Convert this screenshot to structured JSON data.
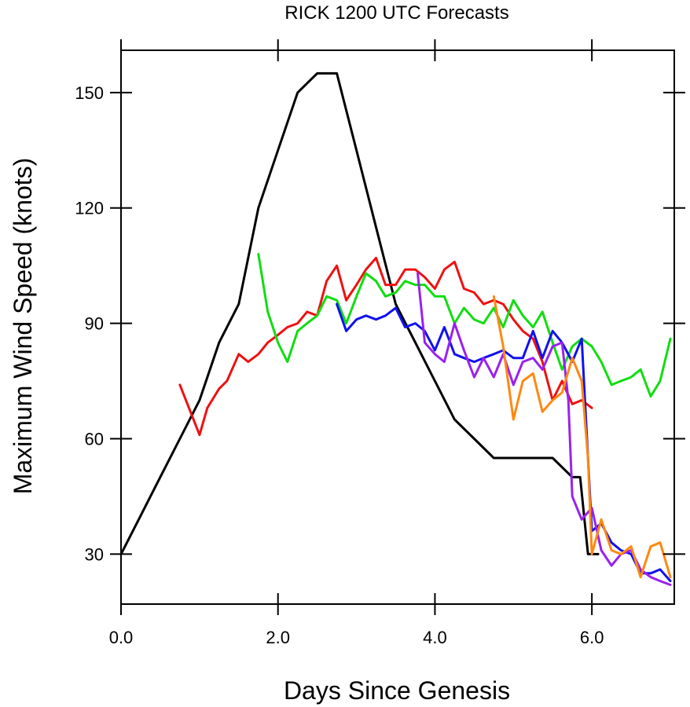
{
  "chart_data": {
    "type": "line",
    "title": "RICK 1200 UTC Forecasts",
    "xlabel": "Days Since Genesis",
    "ylabel": "Maximum Wind Speed (knots)",
    "xlim": [
      0,
      7.05
    ],
    "ylim": [
      17,
      161
    ],
    "xticks": [
      0,
      2,
      4,
      6
    ],
    "xtick_labels": [
      "0.0",
      "2.0",
      "4.0",
      "6.0"
    ],
    "yticks": [
      30,
      60,
      90,
      120,
      150
    ],
    "ytick_labels": [
      "30",
      "60",
      "90",
      "120",
      "150"
    ],
    "grid": false,
    "legend": "none",
    "series": [
      {
        "color": "#000000",
        "x": [
          0,
          0.25,
          0.5,
          0.75,
          1.0,
          1.25,
          1.5,
          1.75,
          2.0,
          2.25,
          2.5,
          2.75,
          3.0,
          3.25,
          3.5,
          3.75,
          4.0,
          4.25,
          4.5,
          4.75,
          5.0,
          5.25,
          5.5,
          5.75,
          5.85,
          5.95,
          6.0,
          6.08
        ],
        "y": [
          30,
          40,
          50,
          60,
          70,
          85,
          95,
          120,
          135,
          150,
          155,
          155,
          135,
          115,
          95,
          85,
          75,
          65,
          60,
          55,
          55,
          55,
          55,
          50,
          50,
          30,
          30,
          30
        ]
      },
      {
        "color": "#ee1111",
        "x": [
          0.75,
          1.0,
          1.1,
          1.25,
          1.35,
          1.5,
          1.62,
          1.75,
          1.87,
          2.0,
          2.12,
          2.25,
          2.37,
          2.5,
          2.62,
          2.75,
          2.87,
          3.0,
          3.12,
          3.25,
          3.37,
          3.5,
          3.62,
          3.75,
          3.87,
          4.0,
          4.12,
          4.25,
          4.37,
          4.5,
          4.62,
          4.75,
          4.87,
          5.0,
          5.12,
          5.25,
          5.37,
          5.5,
          5.62,
          5.75,
          5.87,
          6.0
        ],
        "y": [
          74,
          61,
          68,
          73,
          75,
          82,
          80,
          82,
          85,
          87,
          89,
          90,
          93,
          92,
          101,
          105,
          96,
          100,
          104,
          107,
          100,
          100,
          104,
          104,
          102,
          99,
          104,
          106,
          99,
          98,
          95,
          96,
          95,
          91,
          88,
          86,
          80,
          70,
          75,
          69,
          70,
          68
        ]
      },
      {
        "color": "#11dd11",
        "x": [
          1.75,
          1.87,
          2.0,
          2.12,
          2.25,
          2.37,
          2.5,
          2.62,
          2.75,
          2.87,
          3.0,
          3.12,
          3.25,
          3.37,
          3.5,
          3.62,
          3.75,
          3.87,
          4.0,
          4.12,
          4.25,
          4.37,
          4.5,
          4.62,
          4.75,
          4.87,
          5.0,
          5.12,
          5.25,
          5.37,
          5.5,
          5.62,
          5.75,
          5.87,
          6.0,
          6.12,
          6.25,
          6.37,
          6.5,
          6.62,
          6.75,
          6.87,
          7.0
        ],
        "y": [
          108,
          93,
          85,
          80,
          88,
          90,
          92,
          97,
          96,
          90,
          97,
          103,
          101,
          97,
          98,
          101,
          100,
          100,
          97,
          97,
          90,
          94,
          91,
          90,
          94,
          89,
          96,
          92,
          89,
          93,
          85,
          78,
          84,
          86,
          84,
          80,
          74,
          75,
          76,
          78,
          71,
          75,
          86
        ]
      },
      {
        "color": "#1111ee",
        "x": [
          2.75,
          2.87,
          3.0,
          3.12,
          3.25,
          3.37,
          3.5,
          3.62,
          3.75,
          3.87,
          4.0,
          4.12,
          4.25,
          4.37,
          4.5,
          4.62,
          4.75,
          4.87,
          5.0,
          5.12,
          5.25,
          5.37,
          5.5,
          5.62,
          5.75,
          5.87,
          5.95,
          6.0,
          6.12,
          6.25,
          6.37,
          6.5,
          6.62,
          6.75,
          6.87,
          7.0
        ],
        "y": [
          95,
          88,
          91,
          92,
          91,
          92,
          94,
          89,
          90,
          88,
          83,
          89,
          82,
          81,
          80,
          81,
          82,
          83,
          81,
          81,
          88,
          81,
          88,
          85,
          80,
          86,
          55,
          36,
          38,
          33,
          31,
          30,
          25,
          25,
          26,
          23
        ]
      },
      {
        "color": "#9922ee",
        "x": [
          3.78,
          3.87,
          4.0,
          4.12,
          4.25,
          4.37,
          4.5,
          4.62,
          4.75,
          4.87,
          5.0,
          5.12,
          5.25,
          5.37,
          5.5,
          5.62,
          5.7,
          5.75,
          5.87,
          6.0,
          6.12,
          6.25,
          6.37,
          6.5,
          6.62,
          6.75,
          6.87,
          7.0
        ],
        "y": [
          103,
          85,
          82,
          80,
          90,
          83,
          76,
          81,
          76,
          82,
          74,
          80,
          81,
          78,
          84,
          85,
          70,
          45,
          39,
          42,
          31,
          27,
          30,
          31,
          26,
          24,
          23,
          22
        ]
      },
      {
        "color": "#ff8811",
        "x": [
          4.75,
          4.87,
          5.0,
          5.12,
          5.25,
          5.37,
          5.5,
          5.62,
          5.75,
          5.87,
          5.95,
          6.0,
          6.12,
          6.25,
          6.37,
          6.5,
          6.62,
          6.75,
          6.87,
          7.0
        ],
        "y": [
          97,
          84,
          65,
          75,
          77,
          67,
          70,
          72,
          81,
          75,
          55,
          30,
          39,
          31,
          30,
          32,
          24,
          32,
          33,
          24
        ]
      }
    ]
  }
}
